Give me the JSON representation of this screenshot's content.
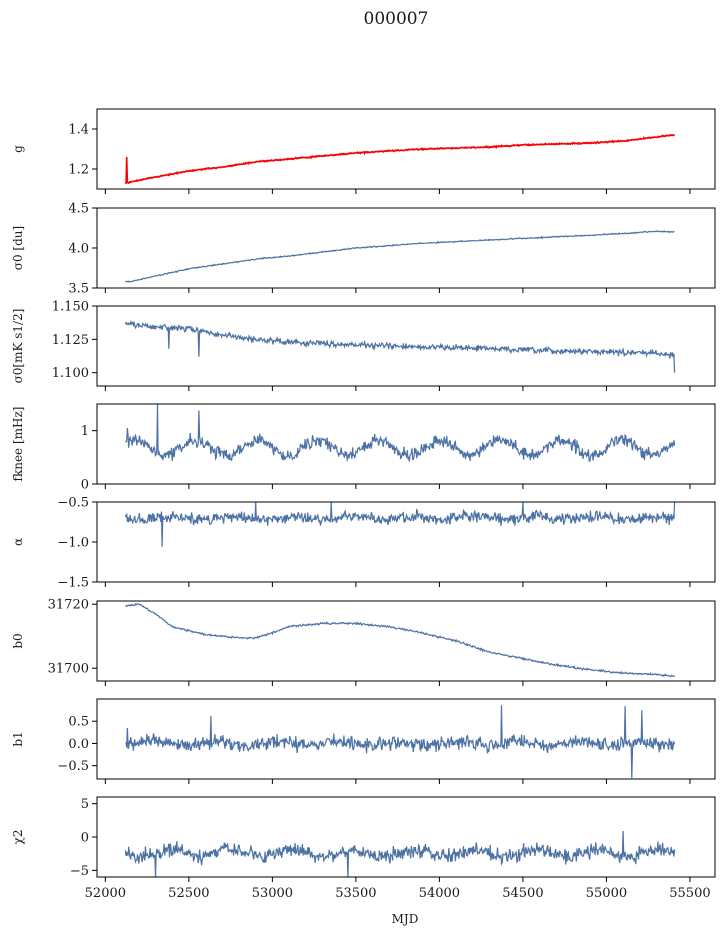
{
  "chart_data": {
    "type": "line",
    "title": "000007",
    "xlabel": "MJD",
    "xlim": [
      51950,
      55650
    ],
    "xticks": [
      52000,
      52500,
      53000,
      53500,
      54000,
      54500,
      55000,
      55500
    ],
    "x_start": 52120,
    "x_end": 55410,
    "colors": {
      "data": "#4c72a4",
      "model": "#ff0000"
    },
    "panels": [
      {
        "id": "g",
        "ylabel": "g",
        "ylim": [
          1.1,
          1.5
        ],
        "yticks": [
          1.2,
          1.4
        ],
        "ytick_labels": [
          "1.2",
          "1.4"
        ],
        "series": [
          {
            "name": "g",
            "color": "#4c72a4",
            "noise": 0.002,
            "knots": [
              [
                52120,
                1.13
              ],
              [
                52300,
                1.16
              ],
              [
                52500,
                1.19
              ],
              [
                52700,
                1.21
              ],
              [
                52900,
                1.235
              ],
              [
                53100,
                1.25
              ],
              [
                53300,
                1.265
              ],
              [
                53500,
                1.28
              ],
              [
                53700,
                1.29
              ],
              [
                53900,
                1.3
              ],
              [
                54100,
                1.305
              ],
              [
                54300,
                1.31
              ],
              [
                54500,
                1.32
              ],
              [
                54700,
                1.325
              ],
              [
                54900,
                1.33
              ],
              [
                55100,
                1.34
              ],
              [
                55250,
                1.355
              ],
              [
                55400,
                1.37
              ]
            ]
          },
          {
            "name": "fit",
            "color": "#ff0000",
            "noise": 0.003,
            "knots": [
              [
                52120,
                1.13
              ],
              [
                52300,
                1.16
              ],
              [
                52500,
                1.19
              ],
              [
                52700,
                1.21
              ],
              [
                52900,
                1.235
              ],
              [
                53100,
                1.25
              ],
              [
                53300,
                1.265
              ],
              [
                53500,
                1.28
              ],
              [
                53700,
                1.29
              ],
              [
                53900,
                1.3
              ],
              [
                54100,
                1.305
              ],
              [
                54300,
                1.31
              ],
              [
                54500,
                1.32
              ],
              [
                54700,
                1.325
              ],
              [
                54900,
                1.33
              ],
              [
                55100,
                1.34
              ],
              [
                55250,
                1.355
              ],
              [
                55400,
                1.37
              ]
            ],
            "spikes": [
              [
                52125,
                1.26
              ]
            ]
          }
        ]
      },
      {
        "id": "sigma0_du",
        "ylabel": "σ0 [du]",
        "ylim": [
          3.5,
          4.5
        ],
        "yticks": [
          3.5,
          4.0,
          4.5
        ],
        "ytick_labels": [
          "3.5",
          "4.0",
          "4.5"
        ],
        "series": [
          {
            "name": "sigma0",
            "color": "#4c72a4",
            "noise": 0.006,
            "knots": [
              [
                52150,
                3.58
              ],
              [
                52300,
                3.65
              ],
              [
                52500,
                3.74
              ],
              [
                52700,
                3.8
              ],
              [
                52900,
                3.86
              ],
              [
                53100,
                3.9
              ],
              [
                53300,
                3.95
              ],
              [
                53500,
                4.0
              ],
              [
                53700,
                4.03
              ],
              [
                53900,
                4.06
              ],
              [
                54100,
                4.08
              ],
              [
                54300,
                4.1
              ],
              [
                54500,
                4.12
              ],
              [
                54700,
                4.14
              ],
              [
                54900,
                4.16
              ],
              [
                55100,
                4.18
              ],
              [
                55300,
                4.21
              ],
              [
                55400,
                4.2
              ]
            ]
          }
        ]
      },
      {
        "id": "sigma0_mk",
        "ylabel": "σ0[mK s1/2]",
        "ylim": [
          1.09,
          1.15
        ],
        "yticks": [
          1.1,
          1.125,
          1.15
        ],
        "ytick_labels": [
          "1.100",
          "1.125",
          "1.150"
        ],
        "series": [
          {
            "name": "sigma0_mk",
            "color": "#4c72a4",
            "noise": 0.0018,
            "knots": [
              [
                52120,
                1.137
              ],
              [
                52300,
                1.134
              ],
              [
                52500,
                1.133
              ],
              [
                52700,
                1.128
              ],
              [
                52900,
                1.125
              ],
              [
                53100,
                1.123
              ],
              [
                53300,
                1.122
              ],
              [
                53500,
                1.121
              ],
              [
                53700,
                1.12
              ],
              [
                53900,
                1.119
              ],
              [
                54100,
                1.119
              ],
              [
                54300,
                1.118
              ],
              [
                54500,
                1.117
              ],
              [
                54700,
                1.116
              ],
              [
                54900,
                1.116
              ],
              [
                55100,
                1.115
              ],
              [
                55300,
                1.115
              ],
              [
                55410,
                1.113
              ]
            ],
            "spikes": [
              [
                52560,
                1.112
              ],
              [
                52380,
                1.118
              ],
              [
                55405,
                1.1
              ]
            ]
          }
        ]
      },
      {
        "id": "fknee",
        "ylabel": "fknee [mHz]",
        "ylim": [
          0,
          1.5
        ],
        "yticks": [
          0,
          1
        ],
        "ytick_labels": [
          "0",
          "1"
        ],
        "series": [
          {
            "name": "fknee",
            "color": "#4c72a4",
            "noise": 0.1,
            "baseline": 0.68,
            "amp": 0.14,
            "period": 365,
            "phase": 52450,
            "spikes": [
              [
                52310,
                1.5
              ],
              [
                52560,
                1.38
              ],
              [
                52130,
                1.05
              ]
            ]
          }
        ]
      },
      {
        "id": "alpha",
        "ylabel": "α",
        "ylim": [
          -1.5,
          -0.5
        ],
        "yticks": [
          -1.5,
          -1.0,
          -0.5
        ],
        "ytick_labels": [
          "−1.5",
          "−1.0",
          "−0.5"
        ],
        "series": [
          {
            "name": "alpha",
            "color": "#4c72a4",
            "noise": 0.06,
            "baseline": -0.7,
            "amp": 0.02,
            "period": 365,
            "phase": 52300,
            "spikes": [
              [
                52340,
                -1.06
              ],
              [
                52900,
                -0.5
              ],
              [
                53350,
                -0.5
              ],
              [
                54500,
                -0.5
              ],
              [
                55410,
                -0.5
              ]
            ]
          }
        ]
      },
      {
        "id": "b0",
        "ylabel": "b0",
        "ylim": [
          31696,
          31721
        ],
        "yticks": [
          31700,
          31720
        ],
        "ytick_labels": [
          "31700",
          "31720"
        ],
        "series": [
          {
            "name": "b0",
            "color": "#4c72a4",
            "noise": 0.25,
            "knots": [
              [
                52130,
                31719.5
              ],
              [
                52200,
                31720
              ],
              [
                52300,
                31717
              ],
              [
                52400,
                31713
              ],
              [
                52600,
                31710.5
              ],
              [
                52800,
                31709.5
              ],
              [
                52900,
                31709.5
              ],
              [
                53000,
                31711
              ],
              [
                53100,
                31713
              ],
              [
                53300,
                31714
              ],
              [
                53500,
                31714
              ],
              [
                53700,
                31713
              ],
              [
                53900,
                31711
              ],
              [
                54100,
                31708.5
              ],
              [
                54300,
                31705
              ],
              [
                54500,
                31703
              ],
              [
                54700,
                31701
              ],
              [
                54900,
                31699.5
              ],
              [
                55100,
                31698.5
              ],
              [
                55300,
                31698
              ],
              [
                55400,
                31697.5
              ]
            ]
          }
        ]
      },
      {
        "id": "b1",
        "ylabel": "b1",
        "ylim": [
          -0.8,
          1.0
        ],
        "yticks": [
          -0.5,
          0.0,
          0.5
        ],
        "ytick_labels": [
          "−0.5",
          "0.0",
          "0.5"
        ],
        "series": [
          {
            "name": "b1",
            "color": "#4c72a4",
            "noise": 0.13,
            "baseline": 0.0,
            "amp": 0.05,
            "period": 365,
            "phase": 52200,
            "spikes": [
              [
                52130,
                0.35
              ],
              [
                52630,
                0.62
              ],
              [
                54370,
                0.86
              ],
              [
                55110,
                0.84
              ],
              [
                55150,
                -0.78
              ],
              [
                55210,
                0.75
              ]
            ]
          }
        ]
      },
      {
        "id": "chi2",
        "ylabel": "χ2",
        "ylim": [
          -6,
          6
        ],
        "yticks": [
          -5,
          0,
          5
        ],
        "ytick_labels": [
          "−5",
          "0",
          "5"
        ],
        "series": [
          {
            "name": "chi2",
            "color": "#4c72a4",
            "noise": 0.9,
            "baseline": -2.4,
            "amp": 0.5,
            "period": 365,
            "phase": 52300,
            "spikes": [
              [
                52300,
                -6
              ],
              [
                53450,
                -6
              ],
              [
                55100,
                0.9
              ]
            ]
          }
        ]
      }
    ]
  }
}
